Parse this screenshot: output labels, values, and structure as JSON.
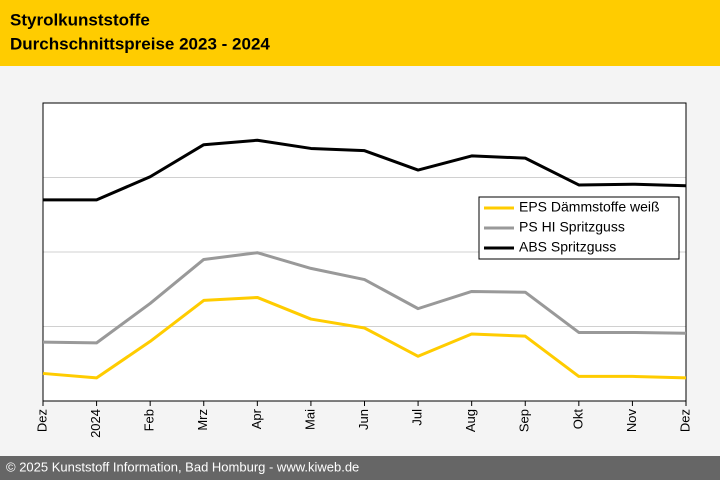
{
  "chart_data": {
    "type": "line",
    "title": "Styrolkunststoffe",
    "subtitle": "Durchschnittspreise 2023 - 2024",
    "footer": "© 2025 Kunststoff Information, Bad Homburg - www.kiweb.de",
    "categories": [
      "Dez",
      "2024",
      "Feb",
      "Mrz",
      "Apr",
      "Mai",
      "Jun",
      "Jul",
      "Aug",
      "Sep",
      "Okt",
      "Nov",
      "Dez"
    ],
    "series": [
      {
        "name": "EPS Dämmstoffe weiß",
        "color": "#ffcc00",
        "values": [
          0.37,
          0.31,
          0.8,
          1.35,
          1.39,
          1.1,
          0.98,
          0.6,
          0.9,
          0.87,
          0.33,
          0.33,
          0.31
        ]
      },
      {
        "name": "PS HI Spritzguss",
        "color": "#999999",
        "values": [
          0.79,
          0.78,
          1.31,
          1.9,
          1.99,
          1.78,
          1.63,
          1.24,
          1.47,
          1.46,
          0.92,
          0.92,
          0.91
        ]
      },
      {
        "name": "ABS Spritzguss",
        "color": "#000000",
        "values": [
          2.7,
          2.7,
          3.01,
          3.44,
          3.5,
          3.39,
          3.36,
          3.1,
          3.29,
          3.26,
          2.9,
          2.91,
          2.89
        ]
      }
    ],
    "ylim": [
      0,
      4
    ],
    "yticks": [
      1,
      2,
      3
    ],
    "grid": true,
    "legend": "right"
  }
}
